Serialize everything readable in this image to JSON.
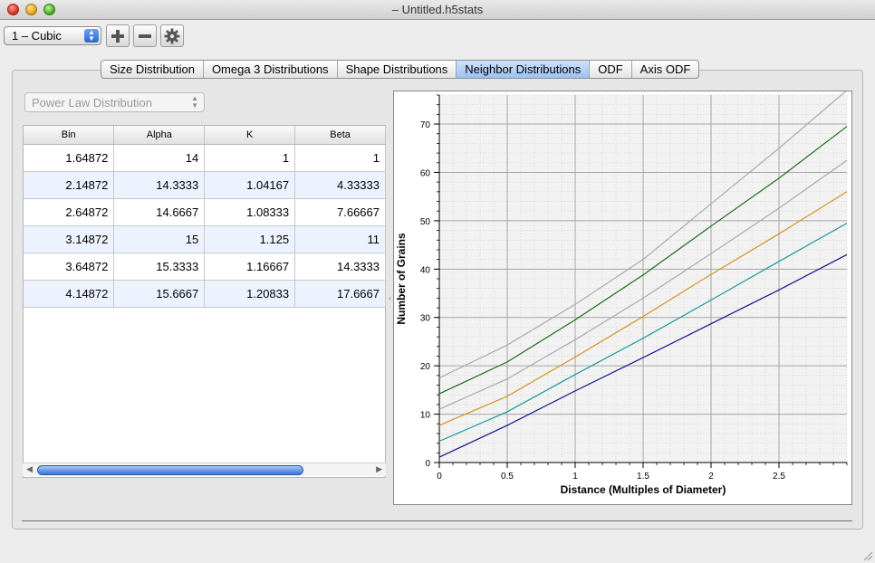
{
  "window": {
    "title": "– Untitled.h5stats"
  },
  "toolbar": {
    "phase_value": "1 – Cubic",
    "add_icon": "plus-icon",
    "remove_icon": "minus-icon",
    "settings_icon": "gear-icon"
  },
  "tabs": [
    {
      "label": "Size Distribution"
    },
    {
      "label": "Omega 3 Distributions"
    },
    {
      "label": "Shape Distributions"
    },
    {
      "label": "Neighbor Distributions",
      "active": true
    },
    {
      "label": "ODF"
    },
    {
      "label": "Axis ODF"
    }
  ],
  "distribution_select": {
    "value": "Power Law Distribution"
  },
  "table": {
    "headers": [
      "Bin",
      "Alpha",
      "K",
      "Beta"
    ],
    "rows": [
      [
        "1.64872",
        "14",
        "1",
        "1"
      ],
      [
        "2.14872",
        "14.3333",
        "1.04167",
        "4.33333"
      ],
      [
        "2.64872",
        "14.6667",
        "1.08333",
        "7.66667"
      ],
      [
        "3.14872",
        "15",
        "1.125",
        "11"
      ],
      [
        "3.64872",
        "15.3333",
        "1.16667",
        "14.3333"
      ],
      [
        "4.14872",
        "15.6667",
        "1.20833",
        "17.6667"
      ]
    ]
  },
  "chart_data": {
    "type": "line",
    "title": "",
    "xlabel": "Distance (Multiples of Diameter)",
    "ylabel": "Number of Grains",
    "xlim": [
      0,
      3
    ],
    "ylim": [
      0,
      76
    ],
    "xticks": [
      "0",
      "0.5",
      "1",
      "1.5",
      "2",
      "2.5"
    ],
    "yticks": [
      "0",
      "10",
      "20",
      "30",
      "40",
      "50",
      "60",
      "70"
    ],
    "grid": true,
    "series": [
      {
        "color": "#a9a9a9",
        "values": [
          [
            0,
            17.5
          ],
          [
            0.5,
            24.3
          ],
          [
            1,
            32.7
          ],
          [
            1.5,
            42.0
          ],
          [
            2,
            53.5
          ],
          [
            2.5,
            65.0
          ],
          [
            3,
            77.0
          ]
        ]
      },
      {
        "color": "#1e6b1e",
        "values": [
          [
            0,
            14.2
          ],
          [
            0.5,
            20.8
          ],
          [
            1,
            29.5
          ],
          [
            1.5,
            38.8
          ],
          [
            2,
            48.9
          ],
          [
            2.5,
            58.8
          ],
          [
            3,
            69.5
          ]
        ]
      },
      {
        "color": "#a9a9a9",
        "values": [
          [
            0,
            11.0
          ],
          [
            0.5,
            17.3
          ],
          [
            1,
            25.4
          ],
          [
            1.5,
            34.0
          ],
          [
            2,
            43.2
          ],
          [
            2.5,
            52.6
          ],
          [
            3,
            62.5
          ]
        ]
      },
      {
        "color": "#d4951f",
        "values": [
          [
            0,
            7.7
          ],
          [
            0.5,
            13.7
          ],
          [
            1,
            21.8
          ],
          [
            1.5,
            30.2
          ],
          [
            2,
            38.9
          ],
          [
            2.5,
            47.3
          ],
          [
            3,
            56.0
          ]
        ]
      },
      {
        "color": "#1a9a9a",
        "values": [
          [
            0,
            4.4
          ],
          [
            0.5,
            10.5
          ],
          [
            1,
            18.2
          ],
          [
            1.5,
            25.7
          ],
          [
            2,
            33.6
          ],
          [
            2.5,
            41.6
          ],
          [
            3,
            49.5
          ]
        ]
      },
      {
        "color": "#14148c",
        "values": [
          [
            0,
            1.1
          ],
          [
            0.5,
            7.7
          ],
          [
            1,
            14.8
          ],
          [
            1.5,
            21.7
          ],
          [
            2,
            28.7
          ],
          [
            2.5,
            35.7
          ],
          [
            3,
            43.0
          ]
        ]
      }
    ]
  }
}
